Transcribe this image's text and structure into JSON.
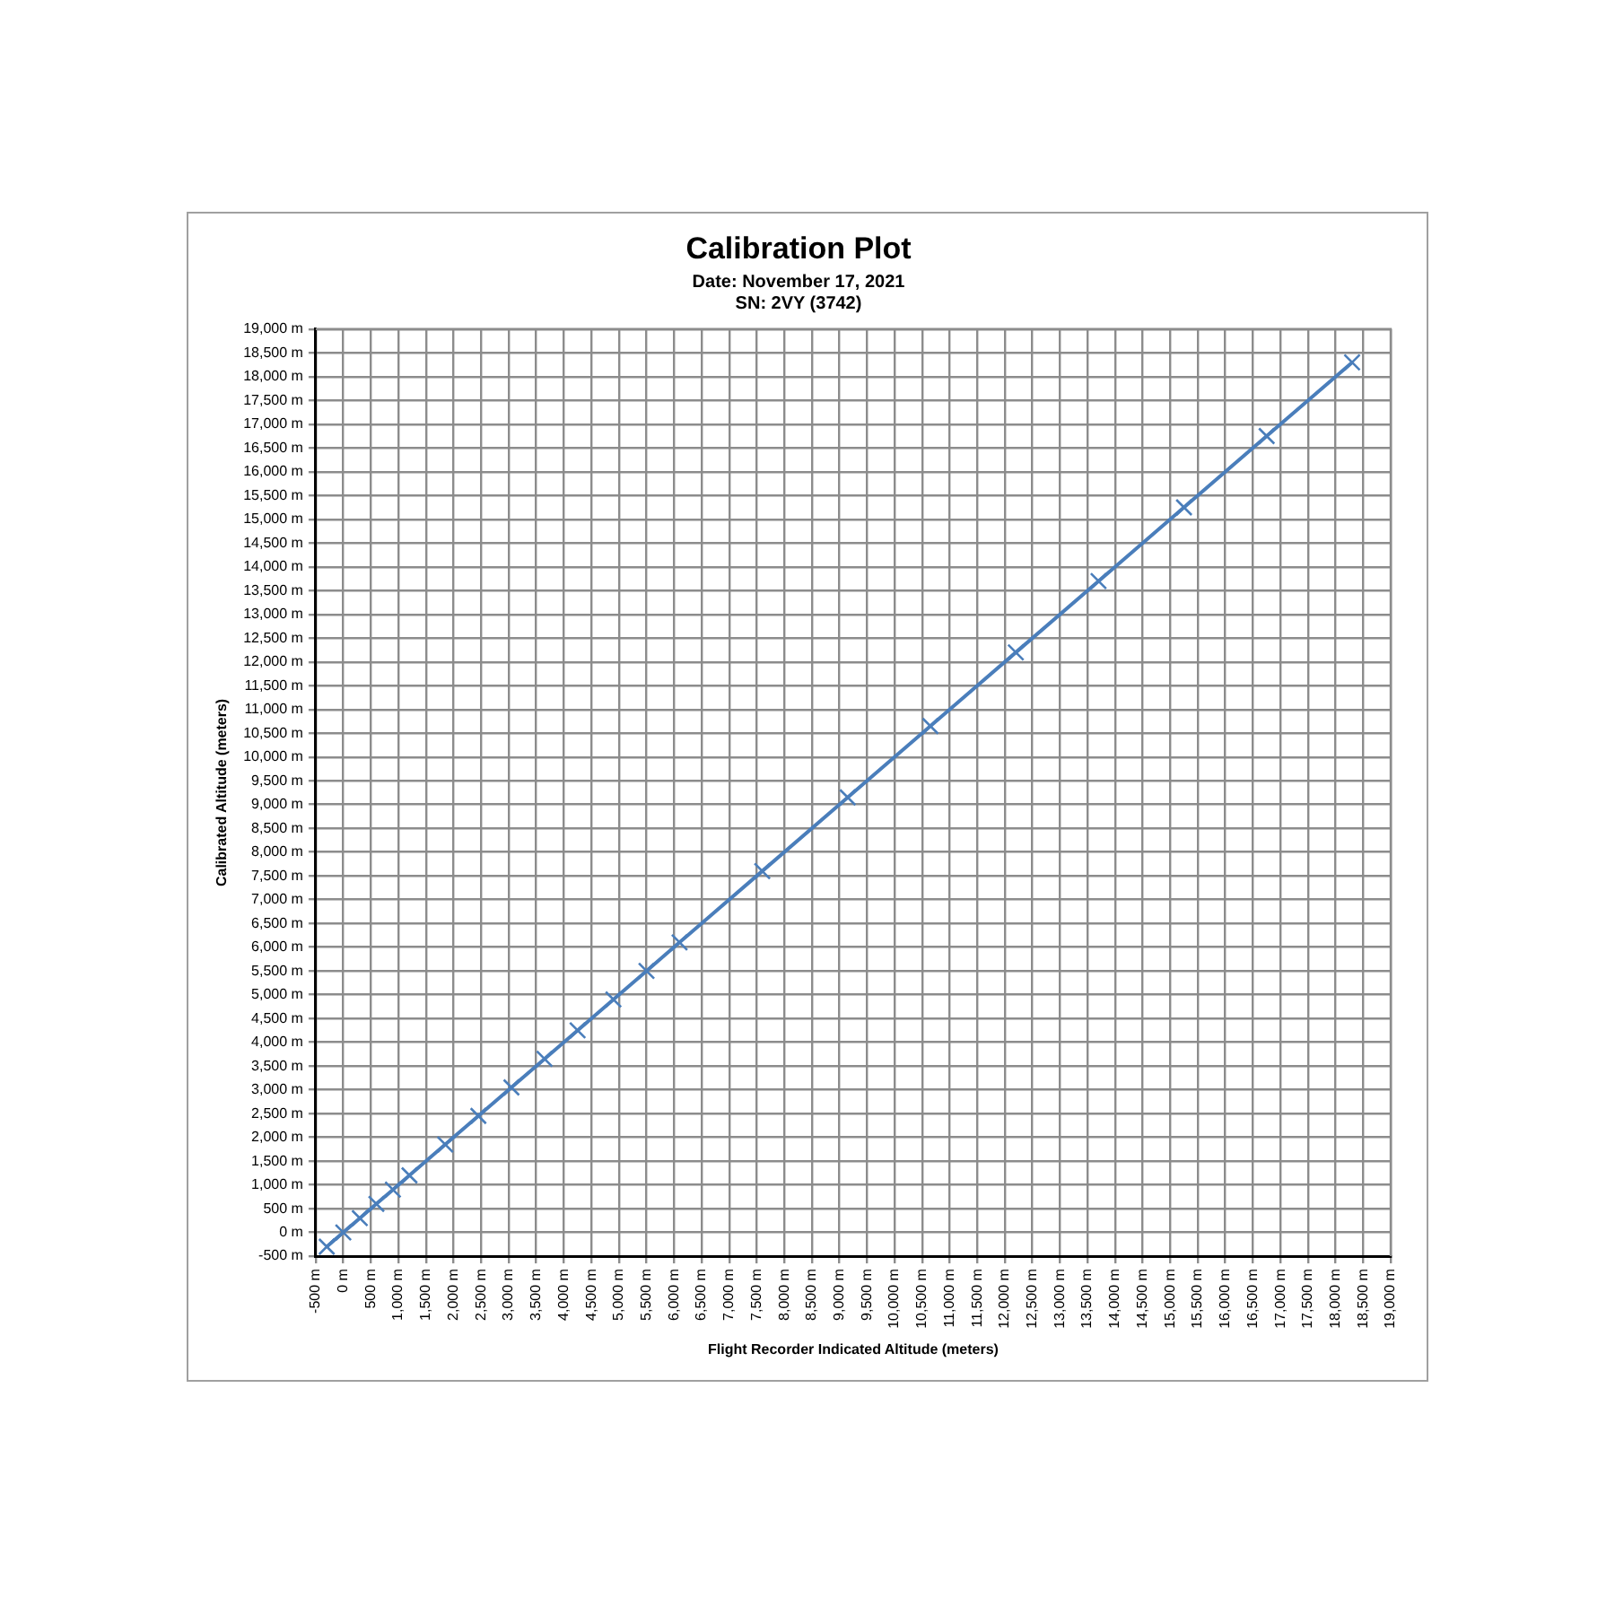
{
  "chart_data": {
    "type": "line",
    "title": "Calibration Plot",
    "subtitle": "Date: November 17, 2021\nSN: 2VY (3742)",
    "xlabel": "Flight Recorder Indicated Altitude (meters)",
    "ylabel": "Calibrated Altitude (meters)",
    "x": [
      -300,
      0,
      300,
      600,
      900,
      1200,
      1850,
      2450,
      3050,
      3650,
      4250,
      4900,
      5500,
      6100,
      7600,
      9150,
      10650,
      12200,
      13700,
      15250,
      16750,
      18300
    ],
    "series": [
      {
        "color": "#4a7ebb",
        "values": [
          -300,
          0,
          300,
          600,
          900,
          1200,
          1850,
          2450,
          3050,
          3650,
          4250,
          4900,
          5500,
          6100,
          7600,
          9150,
          10650,
          12200,
          13700,
          15250,
          16750,
          18300
        ]
      }
    ],
    "marker": "cross",
    "line_style": "solid",
    "grid": true,
    "legend": false,
    "xlim": [
      -500,
      19000
    ],
    "ylim": [
      -500,
      19000
    ],
    "xticks": [
      {
        "value": -500,
        "label": "-500 m"
      },
      {
        "value": 0,
        "label": "0 m"
      },
      {
        "value": 500,
        "label": "500 m"
      },
      {
        "value": 1000,
        "label": "1,000 m"
      },
      {
        "value": 1500,
        "label": "1,500 m"
      },
      {
        "value": 2000,
        "label": "2,000 m"
      },
      {
        "value": 2500,
        "label": "2,500 m"
      },
      {
        "value": 3000,
        "label": "3,000 m"
      },
      {
        "value": 3500,
        "label": "3,500 m"
      },
      {
        "value": 4000,
        "label": "4,000 m"
      },
      {
        "value": 4500,
        "label": "4,500 m"
      },
      {
        "value": 5000,
        "label": "5,000 m"
      },
      {
        "value": 5500,
        "label": "5,500 m"
      },
      {
        "value": 6000,
        "label": "6,000 m"
      },
      {
        "value": 6500,
        "label": "6,500 m"
      },
      {
        "value": 7000,
        "label": "7,000 m"
      },
      {
        "value": 7500,
        "label": "7,500 m"
      },
      {
        "value": 8000,
        "label": "8,000 m"
      },
      {
        "value": 8500,
        "label": "8,500 m"
      },
      {
        "value": 9000,
        "label": "9,000 m"
      },
      {
        "value": 9500,
        "label": "9,500 m"
      },
      {
        "value": 10000,
        "label": "10,000 m"
      },
      {
        "value": 10500,
        "label": "10,500 m"
      },
      {
        "value": 11000,
        "label": "11,000 m"
      },
      {
        "value": 11500,
        "label": "11,500 m"
      },
      {
        "value": 12000,
        "label": "12,000 m"
      },
      {
        "value": 12500,
        "label": "12,500 m"
      },
      {
        "value": 13000,
        "label": "13,000 m"
      },
      {
        "value": 13500,
        "label": "13,500 m"
      },
      {
        "value": 14000,
        "label": "14,000 m"
      },
      {
        "value": 14500,
        "label": "14,500 m"
      },
      {
        "value": 15000,
        "label": "15,000 m"
      },
      {
        "value": 15500,
        "label": "15,500 m"
      },
      {
        "value": 16000,
        "label": "16,000 m"
      },
      {
        "value": 16500,
        "label": "16,500 m"
      },
      {
        "value": 17000,
        "label": "17,000 m"
      },
      {
        "value": 17500,
        "label": "17,500 m"
      },
      {
        "value": 18000,
        "label": "18,000 m"
      },
      {
        "value": 18500,
        "label": "18,500 m"
      },
      {
        "value": 19000,
        "label": "19,000 m"
      }
    ],
    "yticks": [
      {
        "value": -500,
        "label": "-500 m"
      },
      {
        "value": 0,
        "label": "0 m"
      },
      {
        "value": 500,
        "label": "500 m"
      },
      {
        "value": 1000,
        "label": "1,000 m"
      },
      {
        "value": 1500,
        "label": "1,500 m"
      },
      {
        "value": 2000,
        "label": "2,000 m"
      },
      {
        "value": 2500,
        "label": "2,500 m"
      },
      {
        "value": 3000,
        "label": "3,000 m"
      },
      {
        "value": 3500,
        "label": "3,500 m"
      },
      {
        "value": 4000,
        "label": "4,000 m"
      },
      {
        "value": 4500,
        "label": "4,500 m"
      },
      {
        "value": 5000,
        "label": "5,000 m"
      },
      {
        "value": 5500,
        "label": "5,500 m"
      },
      {
        "value": 6000,
        "label": "6,000 m"
      },
      {
        "value": 6500,
        "label": "6,500 m"
      },
      {
        "value": 7000,
        "label": "7,000 m"
      },
      {
        "value": 7500,
        "label": "7,500 m"
      },
      {
        "value": 8000,
        "label": "8,000 m"
      },
      {
        "value": 8500,
        "label": "8,500 m"
      },
      {
        "value": 9000,
        "label": "9,000 m"
      },
      {
        "value": 9500,
        "label": "9,500 m"
      },
      {
        "value": 10000,
        "label": "10,000 m"
      },
      {
        "value": 10500,
        "label": "10,500 m"
      },
      {
        "value": 11000,
        "label": "11,000 m"
      },
      {
        "value": 11500,
        "label": "11,500 m"
      },
      {
        "value": 12000,
        "label": "12,000 m"
      },
      {
        "value": 12500,
        "label": "12,500 m"
      },
      {
        "value": 13000,
        "label": "13,000 m"
      },
      {
        "value": 13500,
        "label": "13,500 m"
      },
      {
        "value": 14000,
        "label": "14,000 m"
      },
      {
        "value": 14500,
        "label": "14,500 m"
      },
      {
        "value": 15000,
        "label": "15,000 m"
      },
      {
        "value": 15500,
        "label": "15,500 m"
      },
      {
        "value": 16000,
        "label": "16,000 m"
      },
      {
        "value": 16500,
        "label": "16,500 m"
      },
      {
        "value": 17000,
        "label": "17,000 m"
      },
      {
        "value": 17500,
        "label": "17,500 m"
      },
      {
        "value": 18000,
        "label": "18,000 m"
      },
      {
        "value": 18500,
        "label": "18,500 m"
      },
      {
        "value": 19000,
        "label": "19,000 m"
      }
    ]
  }
}
